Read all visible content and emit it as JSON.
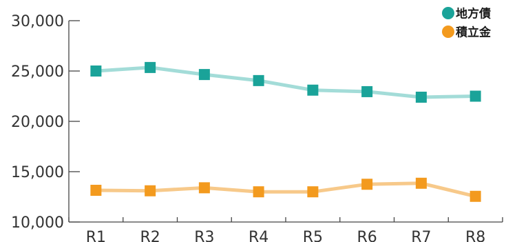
{
  "chart_data": {
    "type": "line",
    "title": "",
    "xlabel": "",
    "ylabel": "",
    "categories": [
      "R1",
      "R2",
      "R3",
      "R4",
      "R5",
      "R6",
      "R7",
      "R8"
    ],
    "ylim": [
      10000,
      30000
    ],
    "yticks": [
      10000,
      15000,
      20000,
      25000,
      30000
    ],
    "ytick_labels": [
      "10,000",
      "15,000",
      "20,000",
      "25,000",
      "30,000"
    ],
    "grid": false,
    "legend_position": "top-right",
    "series": [
      {
        "name": "地方債",
        "values": [
          25000,
          25350,
          24650,
          24050,
          23100,
          22950,
          22400,
          22500
        ],
        "line_color": "#a3dcd8",
        "marker_color": "#1aa399",
        "legend_color": "#1aa399"
      },
      {
        "name": "積立金",
        "values": [
          13150,
          13100,
          13400,
          13000,
          13000,
          13750,
          13850,
          12550
        ],
        "line_color": "#f7c98a",
        "marker_color": "#f39a1e",
        "legend_color": "#f39a1e"
      }
    ]
  }
}
